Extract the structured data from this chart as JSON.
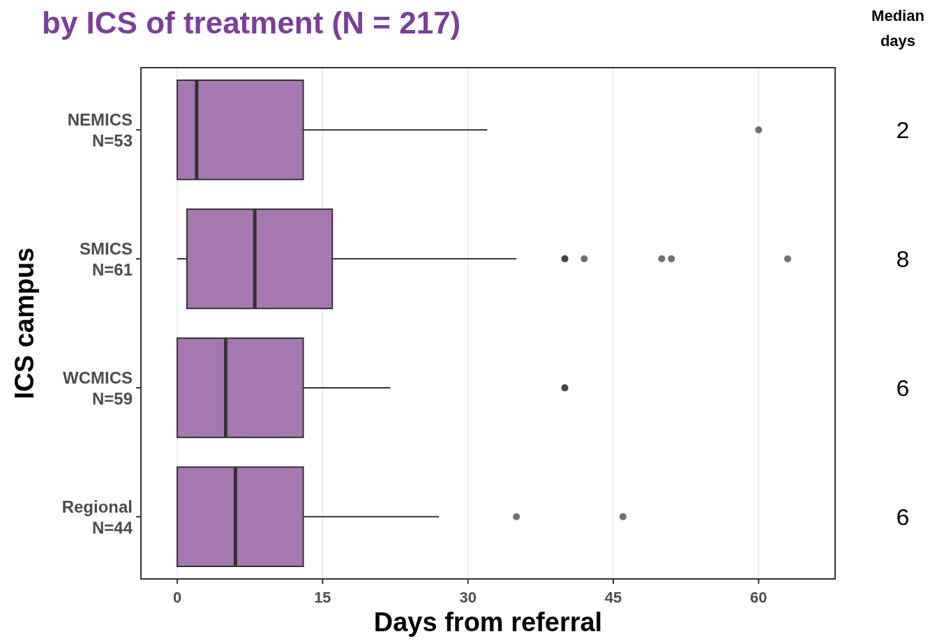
{
  "chart_data": {
    "type": "box",
    "title": "by ICS of treatment (N = 217)",
    "xlabel": "Days from referral",
    "ylabel": "ICS campus",
    "orientation": "horizontal",
    "categories": [
      "NEMICS\nN=53",
      "SMICS\nN=61",
      "WCMICS\nN=59",
      "Regional\nN=44"
    ],
    "series": [
      {
        "color": "#a678b0",
        "boxes": [
          {
            "low": 0,
            "q1": 0,
            "median": 2,
            "q3": 13,
            "high": 32,
            "outliers": [
              60
            ]
          },
          {
            "low": 0,
            "q1": 1,
            "median": 8,
            "q3": 16,
            "high": 35,
            "outliers": [
              40,
              40,
              42,
              50,
              51,
              63
            ]
          },
          {
            "low": 0,
            "q1": 0,
            "median": 5,
            "q3": 13,
            "high": 22,
            "outliers": [
              40,
              40
            ]
          },
          {
            "low": 0,
            "q1": 0,
            "median": 6,
            "q3": 13,
            "high": 27,
            "outliers": [
              35,
              46
            ]
          }
        ]
      }
    ],
    "xlim": [
      -3.75,
      67.9
    ],
    "xticks": [
      0,
      15,
      30,
      45,
      60
    ],
    "grid": "x",
    "annotations": [
      "Median days",
      "2",
      "8",
      "6",
      "6"
    ]
  }
}
